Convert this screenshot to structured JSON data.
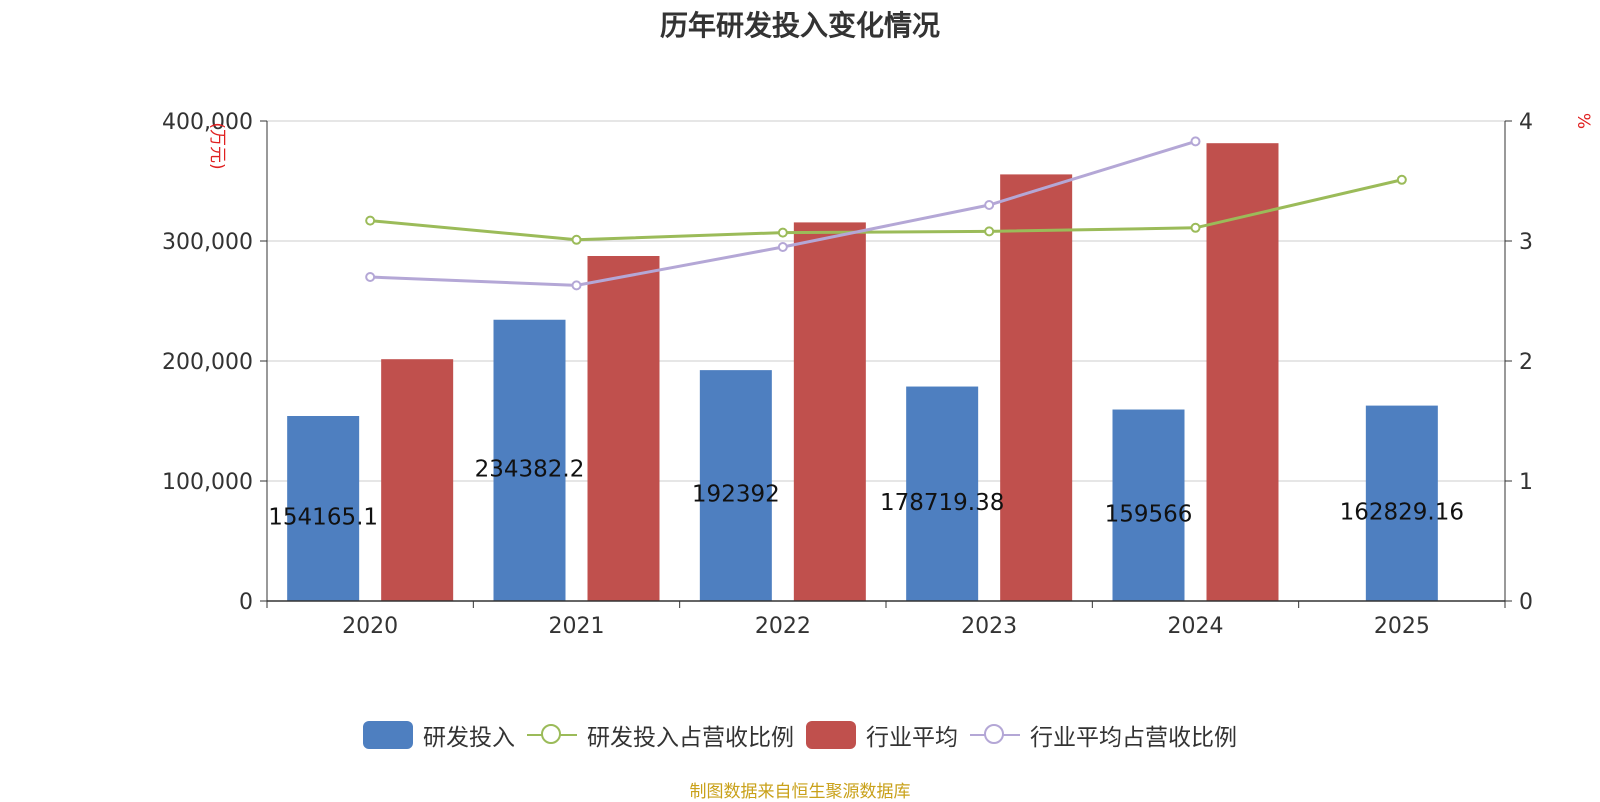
{
  "chart_data": {
    "type": "bar",
    "title": "历年研发投入变化情况",
    "categories": [
      "2020",
      "2021",
      "2022",
      "2023",
      "2024",
      "2025"
    ],
    "ylabel_left": "(万元)",
    "ylabel_right": "%",
    "y_left_ticks": [
      "0",
      "100,000",
      "200,000",
      "300,000",
      "400,000"
    ],
    "y_right_ticks": [
      "0",
      "1",
      "2",
      "3",
      "4"
    ],
    "ylim_left": [
      0,
      400000
    ],
    "ylim_right": [
      0,
      4
    ],
    "grid": true,
    "legend_position": "bottom",
    "series": [
      {
        "name": "研发投入",
        "type": "bar",
        "axis": "left",
        "color": "#4e7fc0",
        "values": [
          154165.1,
          234382.2,
          192392,
          178719.38,
          159566,
          162829.16
        ],
        "labels": [
          "154165.1",
          "234382.2",
          "192392",
          "178719.38",
          "159566",
          "162829.16"
        ]
      },
      {
        "name": "研发投入占营收比例",
        "type": "line",
        "axis": "right",
        "color": "#9bbb59",
        "values": [
          3.17,
          3.01,
          3.07,
          3.08,
          3.11,
          3.51
        ]
      },
      {
        "name": "行业平均",
        "type": "bar",
        "axis": "left",
        "color": "#c0504d",
        "values": [
          201500,
          287500,
          315500,
          355500,
          381500,
          null
        ]
      },
      {
        "name": "行业平均占营收比例",
        "type": "line",
        "axis": "right",
        "color": "#b4a7d6",
        "values": [
          2.7,
          2.63,
          2.95,
          3.3,
          3.83,
          null
        ]
      }
    ]
  },
  "footer": {
    "source": "制图数据来自恒生聚源数据库"
  }
}
